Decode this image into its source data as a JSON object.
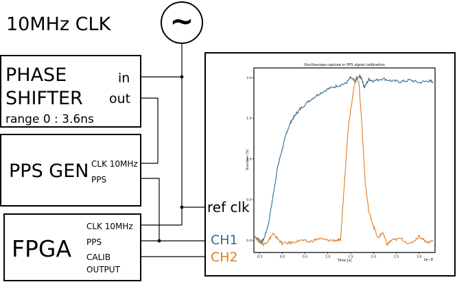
{
  "title": "10MHz CLK",
  "source_symbol": "~",
  "phase_shifter": {
    "name_line1": "PHASE",
    "name_line2": "SHIFTER",
    "range": "range 0 : 3.6ns",
    "in_label": "in",
    "out_label": "out"
  },
  "pps_gen": {
    "name": "PPS GEN",
    "clk_label": "CLK 10MHz",
    "pps_label": "PPS"
  },
  "fpga": {
    "name": "FPGA",
    "clk_label": "CLK 10MHz",
    "pps_label": "PPS",
    "calib_label": "CALIB",
    "output_label": "OUTPUT"
  },
  "scope": {
    "ref_label": "ref clk",
    "ch1_label": "CH1",
    "ch2_label": "CH2",
    "ch1_color": "#2f6a8f",
    "ch2_color": "#e07b1f"
  },
  "chart_data": {
    "type": "line",
    "title": "Oscilloscope capture in PPS signal calibration",
    "xlabel": "Time [s]",
    "ylabel": "Transition [V]",
    "x_offset_label": "1e−8",
    "xlim": [
      -0.62,
      3.35
    ],
    "ylim": [
      -0.15,
      2.12
    ],
    "x_ticks": [
      "-0.5",
      "0.0",
      "0.5",
      "1.0",
      "1.5",
      "2.0",
      "2.5",
      "3.0"
    ],
    "y_ticks": [
      "0.0",
      "0.5",
      "1.0",
      "1.5",
      "2.0"
    ],
    "series": [
      {
        "color": "#2f6a8f",
        "x": [
          -0.6,
          -0.5,
          -0.45,
          -0.4,
          -0.3,
          -0.2,
          -0.1,
          0.0,
          0.1,
          0.2,
          0.3,
          0.4,
          0.6,
          0.8,
          1.0,
          1.2,
          1.4,
          1.5,
          1.6,
          1.7,
          1.75,
          1.8,
          1.9,
          2.0,
          2.2,
          2.4,
          2.6,
          2.8,
          3.0,
          3.2,
          3.3
        ],
        "y": [
          0.05,
          0.0,
          -0.02,
          0.02,
          0.2,
          0.55,
          0.9,
          1.12,
          1.33,
          1.47,
          1.55,
          1.62,
          1.72,
          1.8,
          1.86,
          1.9,
          1.93,
          2.0,
          1.95,
          2.02,
          1.98,
          1.88,
          1.98,
          1.96,
          1.99,
          1.96,
          1.95,
          1.97,
          1.94,
          1.96,
          1.95
        ]
      },
      {
        "color": "#e07b1f",
        "x": [
          -0.6,
          -0.5,
          -0.4,
          -0.3,
          -0.2,
          -0.1,
          0.0,
          0.2,
          0.4,
          0.6,
          0.8,
          1.0,
          1.2,
          1.28,
          1.35,
          1.45,
          1.55,
          1.62,
          1.68,
          1.75,
          1.82,
          1.9,
          2.0,
          2.1,
          2.2,
          2.3,
          2.4,
          2.6,
          2.8,
          3.0,
          3.2,
          3.3
        ],
        "y": [
          0.05,
          -0.02,
          -0.05,
          0.0,
          0.08,
          0.02,
          -0.04,
          -0.03,
          0.0,
          -0.02,
          0.02,
          0.0,
          0.0,
          0.0,
          0.6,
          1.4,
          1.8,
          2.02,
          1.95,
          1.4,
          0.7,
          0.35,
          0.18,
          0.02,
          0.1,
          -0.05,
          0.0,
          0.02,
          -0.05,
          0.05,
          -0.03,
          0.0
        ]
      }
    ]
  }
}
